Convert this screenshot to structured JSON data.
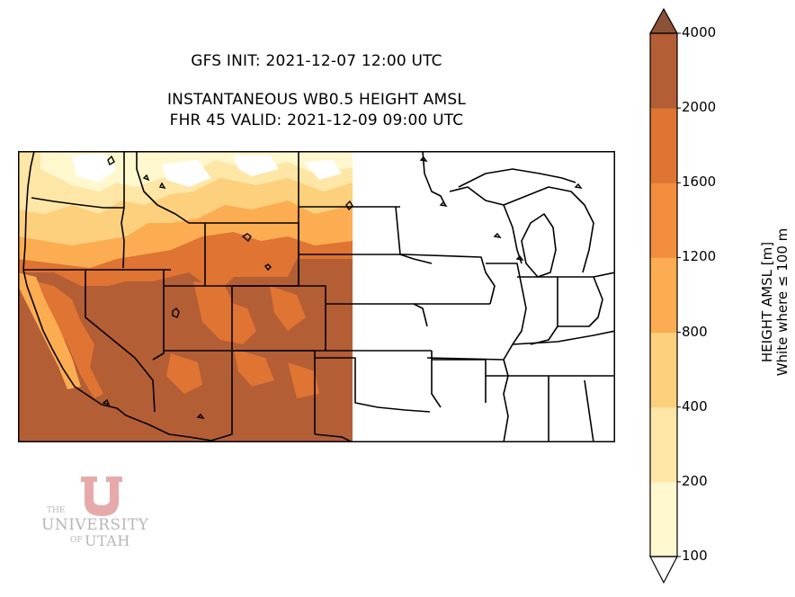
{
  "title": {
    "line1": "GFS INIT: 2021-12-07 12:00 UTC",
    "line2": "INSTANTANEOUS WB0.5 HEIGHT AMSL",
    "line3": "FHR 45 VALID: 2021-12-09 09:00 UTC"
  },
  "colorbar": {
    "label_line1": "HEIGHT AMSL [m]",
    "label_line2": "White where ≤ 100 m",
    "ticks": [
      "100",
      "200",
      "400",
      "800",
      "1200",
      "1600",
      "2000",
      "4000"
    ],
    "colors": [
      "#fff8cf",
      "#fee6a6",
      "#fdd07e",
      "#fcad52",
      "#f48e3f",
      "#df7433",
      "#b45e36",
      "#8b5237"
    ],
    "extend": "both"
  },
  "map": {
    "region": "Western and central United States",
    "data_coverage": "western half of domain only",
    "palette": {
      "very_low": "#ffffff",
      "low": "#fff8cf",
      "mid_low": "#fee6a6",
      "mid": "#fdd07e",
      "mid_high": "#fcad52",
      "high": "#df7433",
      "highest": "#b45e36"
    }
  },
  "logo": {
    "the": "THE",
    "university": "UNIVERSITY",
    "of": "OF",
    "utah": "UTAH",
    "color": "#e7aaaa"
  }
}
